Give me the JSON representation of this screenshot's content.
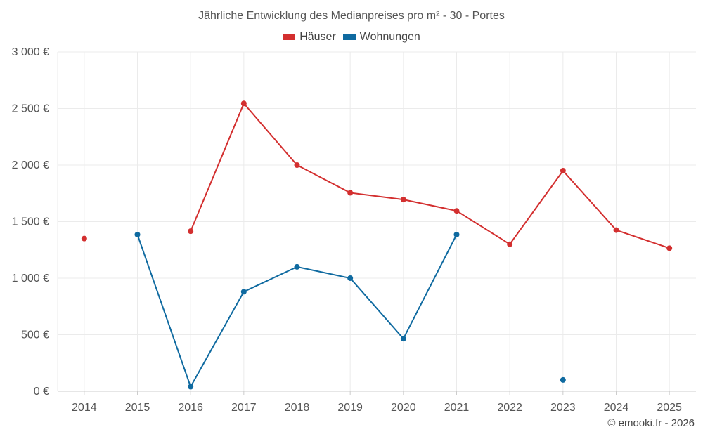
{
  "title": "Jährliche Entwicklung des Medianpreises pro m² - 30 - Portes",
  "credit": "© emooki.fr - 2026",
  "chart_data": {
    "type": "line",
    "title": "Jährliche Entwicklung des Medianpreises pro m² - 30 - Portes",
    "xlabel": "",
    "ylabel": "",
    "categories": [
      "2014",
      "2015",
      "2016",
      "2017",
      "2018",
      "2019",
      "2020",
      "2021",
      "2022",
      "2023",
      "2024",
      "2025"
    ],
    "ylim": [
      0,
      3000
    ],
    "y_ticks": [
      0,
      500,
      1000,
      1500,
      2000,
      2500,
      3000
    ],
    "y_tick_labels": [
      "0 €",
      "500 €",
      "1 000 €",
      "1 500 €",
      "2 000 €",
      "2 500 €",
      "3 000 €"
    ],
    "grid": true,
    "legend_position": "top-center",
    "series": [
      {
        "name": "Häuser",
        "color": "#d32f2f",
        "values": [
          1350,
          null,
          1415,
          2545,
          2000,
          1755,
          1695,
          1595,
          1300,
          1950,
          1425,
          1265
        ]
      },
      {
        "name": "Wohnungen",
        "color": "#0f6aa0",
        "values": [
          null,
          1385,
          40,
          880,
          1100,
          1000,
          465,
          1385,
          null,
          100,
          null,
          null
        ]
      }
    ]
  }
}
